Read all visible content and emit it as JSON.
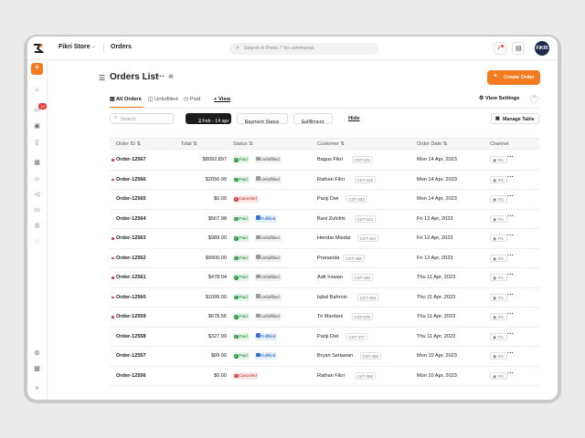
{
  "topbar": {
    "store_name": "Fikri Store",
    "breadcrumb": "Orders",
    "search_placeholder": "Search or Press '/' for commands",
    "avatar_initials": "FIKRI"
  },
  "sidebar": {
    "notification_count": "12"
  },
  "page": {
    "title": "Orders List",
    "create_button": "Create Order"
  },
  "tabs": {
    "items": [
      "All Orders",
      "Unfulfilled",
      "Paid",
      "View"
    ],
    "view_settings": "View Settings"
  },
  "filters": {
    "search_placeholder": "Search",
    "date_range": "2 Feb - 14 apr",
    "payment_status": "Payment Status",
    "fulfillment": "Fulfillment",
    "hide": "Hide",
    "manage_table": "Manage Table"
  },
  "table": {
    "columns": [
      "Order ID",
      "Total",
      "Status",
      "Customer",
      "Order Date",
      "Channel"
    ],
    "channel_label": "Fik",
    "rows": [
      {
        "id": "Order-12567",
        "total": "$8092.897",
        "payment": "Paid",
        "fulfillment": "Unfulfilled",
        "customer": "Bagus Fikri",
        "cst": "CST-124",
        "date": "Mon 14 Apr, 2023",
        "unread": true
      },
      {
        "id": "Order-12566",
        "total": "$2056.99",
        "payment": "Paid",
        "fulfillment": "Unfulfilled",
        "customer": "Raihan Fikri",
        "cst": "CST-412",
        "date": "Mon 14 Apr, 2023",
        "unread": true
      },
      {
        "id": "Order-12565",
        "total": "$0.00",
        "payment": "Canceled",
        "fulfillment": "",
        "customer": "Panji Dwi",
        "cst": "CST-434",
        "date": "Mon 14 Apr, 2023",
        "unread": false
      },
      {
        "id": "Order-12564",
        "total": "$567.98",
        "payment": "Paid",
        "fulfillment": "Fulfilled",
        "customer": "Bani Zuhilmi",
        "cst": "CST-124",
        "date": "Fri 12 Apr, 2023",
        "unread": false
      },
      {
        "id": "Order-12563",
        "total": "$989.00",
        "payment": "Paid",
        "fulfillment": "Unfulfilled",
        "customer": "Hendar Misdar",
        "cst": "CST-434",
        "date": "Fri 12 Apr, 2023",
        "unread": true
      },
      {
        "id": "Order-12562",
        "total": "$9900.00",
        "payment": "Paid",
        "fulfillment": "Unfulfilled",
        "customer": "Prananda",
        "cst": "CST-456",
        "date": "Fri 12 Apr, 2023",
        "unread": true
      },
      {
        "id": "Order-12561",
        "total": "$478.04",
        "payment": "Paid",
        "fulfillment": "Unfulfilled",
        "customer": "Adit Irawan",
        "cst": "CST-345",
        "date": "Thu 11 Apr, 2023",
        "unread": true
      },
      {
        "id": "Order-12560",
        "total": "$1099.00",
        "payment": "Paid",
        "fulfillment": "Unfulfilled",
        "customer": "Iqbal Bahroin",
        "cst": "CST-455",
        "date": "Thu 11 Apr, 2023",
        "unread": true
      },
      {
        "id": "Order-12559",
        "total": "$678.56",
        "payment": "Paid",
        "fulfillment": "Unfulfilled",
        "customer": "Tri Mardani",
        "cst": "CST-678",
        "date": "Thu 11 Apr, 2023",
        "unread": true
      },
      {
        "id": "Order-12558",
        "total": "$327.99",
        "payment": "Paid",
        "fulfillment": "Fulfilled",
        "customer": "Panji Dwi",
        "cst": "CST-477",
        "date": "Thu 11 Apr, 2023",
        "unread": false
      },
      {
        "id": "Order-12557",
        "total": "$89.00",
        "payment": "Paid",
        "fulfillment": "Fulfilled",
        "customer": "Bryan Setiawan",
        "cst": "CST-456",
        "date": "Mon 10 Apr, 2023",
        "unread": false
      },
      {
        "id": "Order-12556",
        "total": "$0.00",
        "payment": "Canceled",
        "fulfillment": "",
        "customer": "Raihan Fikri",
        "cst": "CST-356",
        "date": "Mon 10 Apr, 2023",
        "unread": false
      }
    ]
  }
}
